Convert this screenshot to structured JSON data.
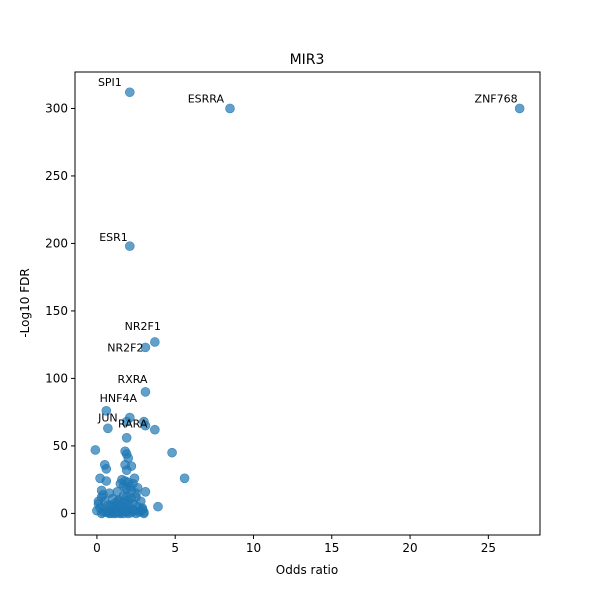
{
  "chart_data": {
    "type": "scatter",
    "title": "MIR3",
    "xlabel": "Odds ratio",
    "ylabel": "-Log10 FDR",
    "xlim": [
      -1.4,
      28.3
    ],
    "ylim": [
      -16,
      327
    ],
    "xticks": [
      0,
      5,
      10,
      15,
      20,
      25
    ],
    "yticks": [
      0,
      50,
      100,
      150,
      200,
      250,
      300
    ],
    "grid": false,
    "color": "#1f77b4",
    "labeled_points": [
      {
        "label": "SPI1",
        "x": 2.1,
        "y": 312
      },
      {
        "label": "ESRRA",
        "x": 8.5,
        "y": 300
      },
      {
        "label": "ZNF768",
        "x": 27.0,
        "y": 300
      },
      {
        "label": "ESR1",
        "x": 2.1,
        "y": 198
      },
      {
        "label": "NR2F1",
        "x": 3.7,
        "y": 127
      },
      {
        "label": "NR2F2",
        "x": 3.1,
        "y": 123
      },
      {
        "label": "RXRA",
        "x": 3.1,
        "y": 90
      },
      {
        "label": "HNF4A",
        "x": 0.6,
        "y": 76
      },
      {
        "label": "JUN",
        "x": 0.7,
        "y": 63
      },
      {
        "label": "RARA",
        "x": 1.9,
        "y": 68
      }
    ],
    "points": [
      [
        2.1,
        71
      ],
      [
        3.0,
        68
      ],
      [
        3.1,
        65
      ],
      [
        3.7,
        62
      ],
      [
        1.9,
        56
      ],
      [
        -0.1,
        47
      ],
      [
        1.8,
        46
      ],
      [
        1.9,
        44
      ],
      [
        2.0,
        41
      ],
      [
        4.8,
        45
      ],
      [
        0.5,
        36
      ],
      [
        0.6,
        33
      ],
      [
        1.8,
        36
      ],
      [
        2.2,
        35
      ],
      [
        1.9,
        32
      ],
      [
        0.2,
        26
      ],
      [
        5.6,
        26
      ],
      [
        0.6,
        24
      ],
      [
        1.6,
        25
      ],
      [
        2.4,
        26
      ],
      [
        1.5,
        22
      ],
      [
        2.0,
        23
      ],
      [
        1.7,
        20
      ],
      [
        2.6,
        19
      ],
      [
        3.1,
        16
      ],
      [
        2.2,
        17
      ],
      [
        1.3,
        16
      ],
      [
        0.8,
        15
      ],
      [
        1.9,
        13
      ],
      [
        2.5,
        12
      ],
      [
        0.3,
        12
      ],
      [
        1.0,
        11
      ],
      [
        1.4,
        10
      ],
      [
        2.0,
        10
      ],
      [
        2.8,
        9
      ],
      [
        0.5,
        9
      ],
      [
        1.7,
        8
      ],
      [
        1.2,
        8
      ],
      [
        0.1,
        7
      ],
      [
        2.3,
        7
      ],
      [
        0.7,
        6
      ],
      [
        1.5,
        6
      ],
      [
        1.0,
        5
      ],
      [
        2.6,
        5
      ],
      [
        3.9,
        5
      ],
      [
        2.9,
        4
      ],
      [
        0.2,
        4
      ],
      [
        1.8,
        4
      ],
      [
        1.3,
        3
      ],
      [
        0.5,
        3
      ],
      [
        2.1,
        3
      ],
      [
        0.9,
        2
      ],
      [
        1.6,
        2
      ],
      [
        2.4,
        2
      ],
      [
        0.0,
        2
      ],
      [
        1.1,
        1
      ],
      [
        1.9,
        1
      ],
      [
        0.4,
        1
      ],
      [
        2.7,
        1
      ],
      [
        1.4,
        0.5
      ],
      [
        0.7,
        0.5
      ],
      [
        2.2,
        0.5
      ],
      [
        3.0,
        0
      ],
      [
        1.0,
        0
      ],
      [
        1.7,
        0
      ],
      [
        0.3,
        0
      ],
      [
        2.5,
        0
      ],
      [
        1.2,
        0
      ],
      [
        0.8,
        0
      ],
      [
        1.5,
        0
      ],
      [
        2.0,
        0
      ],
      [
        1.3,
        1
      ],
      [
        1.8,
        2
      ],
      [
        0.6,
        1
      ],
      [
        2.3,
        3
      ],
      [
        1.1,
        4
      ],
      [
        1.6,
        5
      ],
      [
        0.9,
        6
      ],
      [
        2.0,
        7
      ],
      [
        1.4,
        9
      ],
      [
        2.2,
        11
      ],
      [
        1.7,
        13
      ],
      [
        2.5,
        15
      ],
      [
        1.9,
        18
      ],
      [
        2.1,
        20
      ],
      [
        2.3,
        22
      ],
      [
        1.8,
        24
      ],
      [
        0.4,
        14
      ],
      [
        0.1,
        9
      ],
      [
        0.3,
        17
      ],
      [
        2.8,
        2
      ],
      [
        3.0,
        1
      ],
      [
        2.9,
        3
      ]
    ]
  }
}
